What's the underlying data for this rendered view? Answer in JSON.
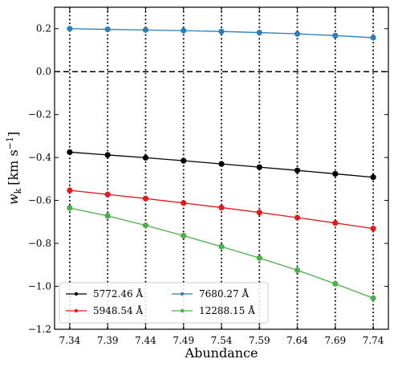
{
  "chart_data": {
    "type": "line",
    "title": "",
    "xlabel": "Abundance",
    "ylabel": "w_k [km s^-1]",
    "ylabel_main": "w",
    "ylabel_sub": "k",
    "ylabel_unit": "[km s",
    "ylabel_exp": "−1",
    "ylabel_close": "]",
    "x": [
      7.34,
      7.39,
      7.44,
      7.49,
      7.54,
      7.59,
      7.64,
      7.69,
      7.74
    ],
    "x_tick_labels": [
      "7.34",
      "7.39",
      "7.44",
      "7.49",
      "7.54",
      "7.59",
      "7.64",
      "7.69",
      "7.74"
    ],
    "xlim": [
      7.32,
      7.76
    ],
    "ylim": [
      -1.2,
      0.3
    ],
    "y_ticks": [
      -1.2,
      -1.0,
      -0.8,
      -0.6,
      -0.4,
      -0.2,
      0.0,
      0.2
    ],
    "y_tick_labels": [
      "−1.2",
      "−1.0",
      "−0.8",
      "−0.6",
      "−0.4",
      "−0.2",
      "0.0",
      "0.2"
    ],
    "reference_line": {
      "y": 0.0,
      "style": "dashed",
      "color": "#000000"
    },
    "vertical_lines": {
      "at_x_values": true,
      "style": "dotted",
      "color": "#000000"
    },
    "legend_position": "lower-left",
    "series": [
      {
        "name": "5772.46 Å",
        "color": "#000000",
        "values": [
          -0.375,
          -0.388,
          -0.401,
          -0.415,
          -0.43,
          -0.445,
          -0.46,
          -0.476,
          -0.492
        ]
      },
      {
        "name": "5948.54 Å",
        "color": "#e31a1c",
        "values": [
          -0.553,
          -0.572,
          -0.591,
          -0.612,
          -0.633,
          -0.656,
          -0.68,
          -0.705,
          -0.731
        ]
      },
      {
        "name": "7680.27 Å",
        "color": "#2c7fb8",
        "values": [
          0.2,
          0.197,
          0.194,
          0.191,
          0.187,
          0.182,
          0.176,
          0.168,
          0.158
        ]
      },
      {
        "name": "12288.15 Å",
        "color": "#4daf4a",
        "values": [
          -0.635,
          -0.672,
          -0.716,
          -0.764,
          -0.815,
          -0.868,
          -0.925,
          -0.988,
          -1.055
        ]
      }
    ]
  }
}
